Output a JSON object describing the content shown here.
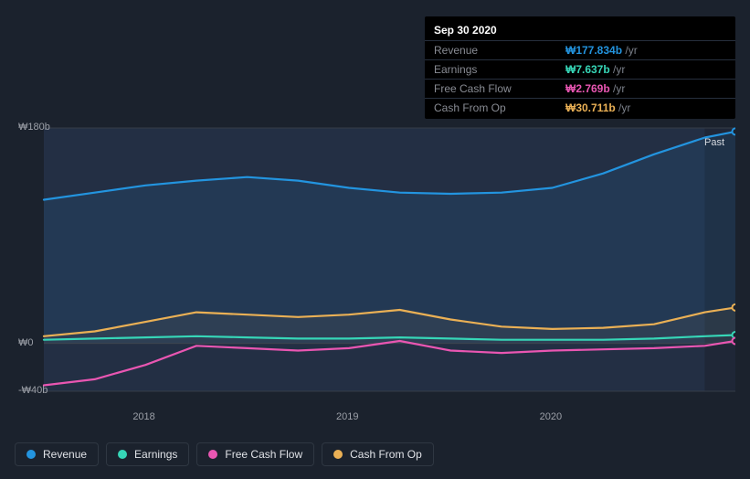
{
  "tooltip": {
    "date": "Sep 30 2020",
    "rows": [
      {
        "label": "Revenue",
        "value": "₩177.834b",
        "suffix": "/yr",
        "color": "#2394df"
      },
      {
        "label": "Earnings",
        "value": "₩7.637b",
        "suffix": "/yr",
        "color": "#36d6b7"
      },
      {
        "label": "Free Cash Flow",
        "value": "₩2.769b",
        "suffix": "/yr",
        "color": "#e956b2"
      },
      {
        "label": "Cash From Op",
        "value": "₩30.711b",
        "suffix": "/yr",
        "color": "#eab055"
      }
    ]
  },
  "chart": {
    "type": "area-line",
    "background_color": "#1b222d",
    "plot_fill_left": "#232f44",
    "plot_fill_right": "#1f2737",
    "grid_color": "#363c47",
    "text_color": "#9ca0a8",
    "past_label": "Past",
    "ylim": [
      -40,
      180
    ],
    "ylabels": [
      {
        "v": 180,
        "text": "₩180b"
      },
      {
        "v": 0,
        "text": "₩0"
      },
      {
        "v": -40,
        "text": "-₩40b"
      }
    ],
    "x_domain": [
      2017.5,
      2020.9
    ],
    "xlabels": [
      {
        "v": 2018,
        "text": "2018"
      },
      {
        "v": 2019,
        "text": "2019"
      },
      {
        "v": 2020,
        "text": "2020"
      }
    ],
    "current_x": 2020.75,
    "series": [
      {
        "key": "revenue",
        "name": "Revenue",
        "color": "#2394df",
        "fill": true,
        "fill_opacity": 0.1,
        "points": [
          [
            2017.5,
            120
          ],
          [
            2017.75,
            126
          ],
          [
            2018.0,
            132
          ],
          [
            2018.25,
            136
          ],
          [
            2018.5,
            139
          ],
          [
            2018.75,
            136
          ],
          [
            2019.0,
            130
          ],
          [
            2019.25,
            126
          ],
          [
            2019.5,
            125
          ],
          [
            2019.75,
            126
          ],
          [
            2020.0,
            130
          ],
          [
            2020.25,
            142
          ],
          [
            2020.5,
            158
          ],
          [
            2020.75,
            172
          ],
          [
            2020.9,
            177
          ]
        ]
      },
      {
        "key": "cash_from_op",
        "name": "Cash From Op",
        "color": "#eab055",
        "fill": true,
        "fill_opacity": 0.06,
        "points": [
          [
            2017.5,
            6
          ],
          [
            2017.75,
            10
          ],
          [
            2018.0,
            18
          ],
          [
            2018.25,
            26
          ],
          [
            2018.5,
            24
          ],
          [
            2018.75,
            22
          ],
          [
            2019.0,
            24
          ],
          [
            2019.25,
            28
          ],
          [
            2019.5,
            20
          ],
          [
            2019.75,
            14
          ],
          [
            2020.0,
            12
          ],
          [
            2020.25,
            13
          ],
          [
            2020.5,
            16
          ],
          [
            2020.75,
            26
          ],
          [
            2020.9,
            30
          ]
        ]
      },
      {
        "key": "earnings",
        "name": "Earnings",
        "color": "#36d6b7",
        "fill": false,
        "points": [
          [
            2017.5,
            3
          ],
          [
            2017.75,
            4
          ],
          [
            2018.0,
            5
          ],
          [
            2018.25,
            6
          ],
          [
            2018.5,
            5
          ],
          [
            2018.75,
            4
          ],
          [
            2019.0,
            4
          ],
          [
            2019.25,
            5
          ],
          [
            2019.5,
            4
          ],
          [
            2019.75,
            3
          ],
          [
            2020.0,
            3
          ],
          [
            2020.25,
            3
          ],
          [
            2020.5,
            4
          ],
          [
            2020.75,
            6
          ],
          [
            2020.9,
            7
          ]
        ]
      },
      {
        "key": "fcf",
        "name": "Free Cash Flow",
        "color": "#e956b2",
        "fill": false,
        "points": [
          [
            2017.5,
            -35
          ],
          [
            2017.75,
            -30
          ],
          [
            2018.0,
            -18
          ],
          [
            2018.25,
            -2
          ],
          [
            2018.5,
            -4
          ],
          [
            2018.75,
            -6
          ],
          [
            2019.0,
            -4
          ],
          [
            2019.25,
            2
          ],
          [
            2019.5,
            -6
          ],
          [
            2019.75,
            -8
          ],
          [
            2020.0,
            -6
          ],
          [
            2020.25,
            -5
          ],
          [
            2020.5,
            -4
          ],
          [
            2020.75,
            -2
          ],
          [
            2020.9,
            2
          ]
        ]
      }
    ]
  },
  "legend": [
    {
      "label": "Revenue",
      "color": "#2394df",
      "key": "revenue"
    },
    {
      "label": "Earnings",
      "color": "#36d6b7",
      "key": "earnings"
    },
    {
      "label": "Free Cash Flow",
      "color": "#e956b2",
      "key": "fcf"
    },
    {
      "label": "Cash From Op",
      "color": "#eab055",
      "key": "cash_from_op"
    }
  ]
}
